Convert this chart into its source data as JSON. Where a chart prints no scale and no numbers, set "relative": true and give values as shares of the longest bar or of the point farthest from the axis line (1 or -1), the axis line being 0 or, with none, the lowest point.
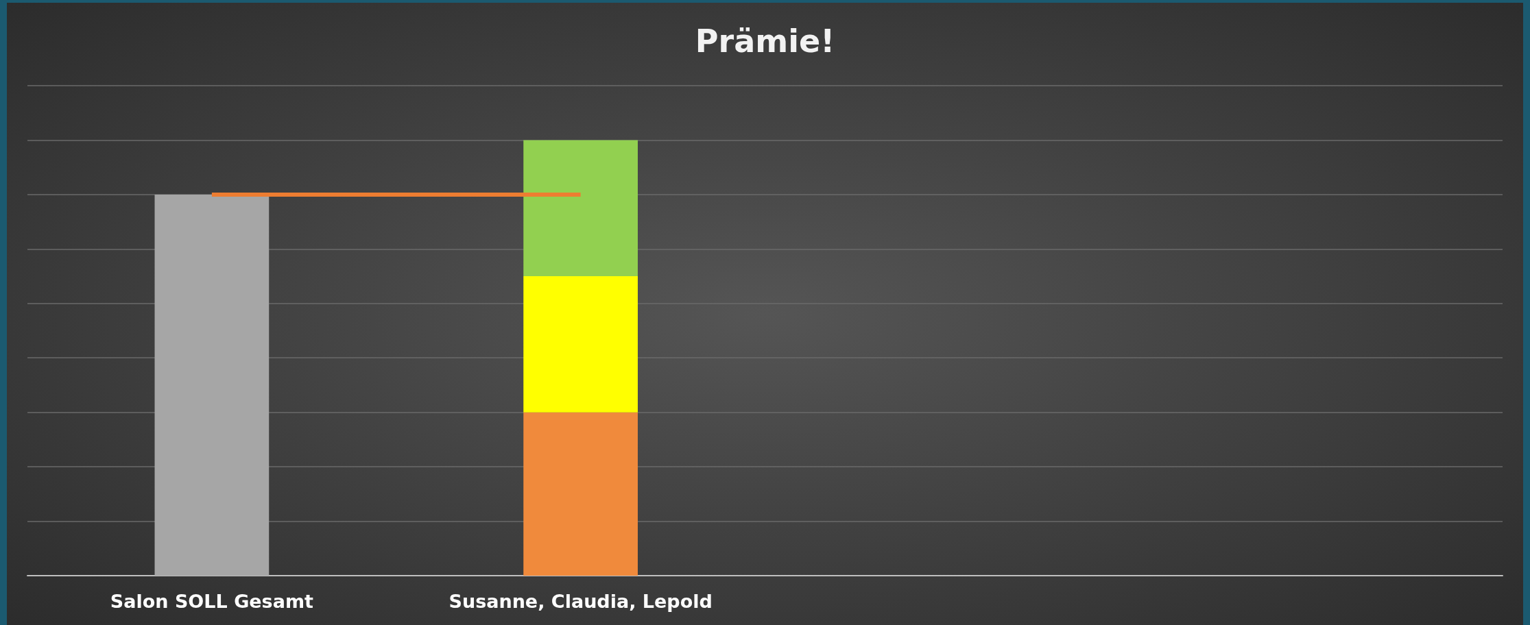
{
  "chart_data": {
    "type": "bar",
    "title": "Prämie!",
    "relative": true,
    "stacked": true,
    "grid": "y",
    "categories": [
      "Salon SOLL Gesamt",
      "Susanne, Claudia, Lepold",
      null,
      null
    ],
    "series": [
      {
        "color": "#a6a6a6",
        "values": [
          0.875,
          null,
          null,
          null
        ]
      },
      {
        "color": "#f08a3c",
        "values": [
          null,
          0.375,
          null,
          null
        ]
      },
      {
        "color": "#ffff00",
        "values": [
          null,
          0.3125,
          null,
          null
        ]
      },
      {
        "color": "#92d050",
        "values": [
          null,
          0.3125,
          null,
          null
        ]
      }
    ],
    "ref_lines": [
      {
        "axis": "y",
        "value": 0.875,
        "color": "#ed7d31"
      }
    ]
  }
}
